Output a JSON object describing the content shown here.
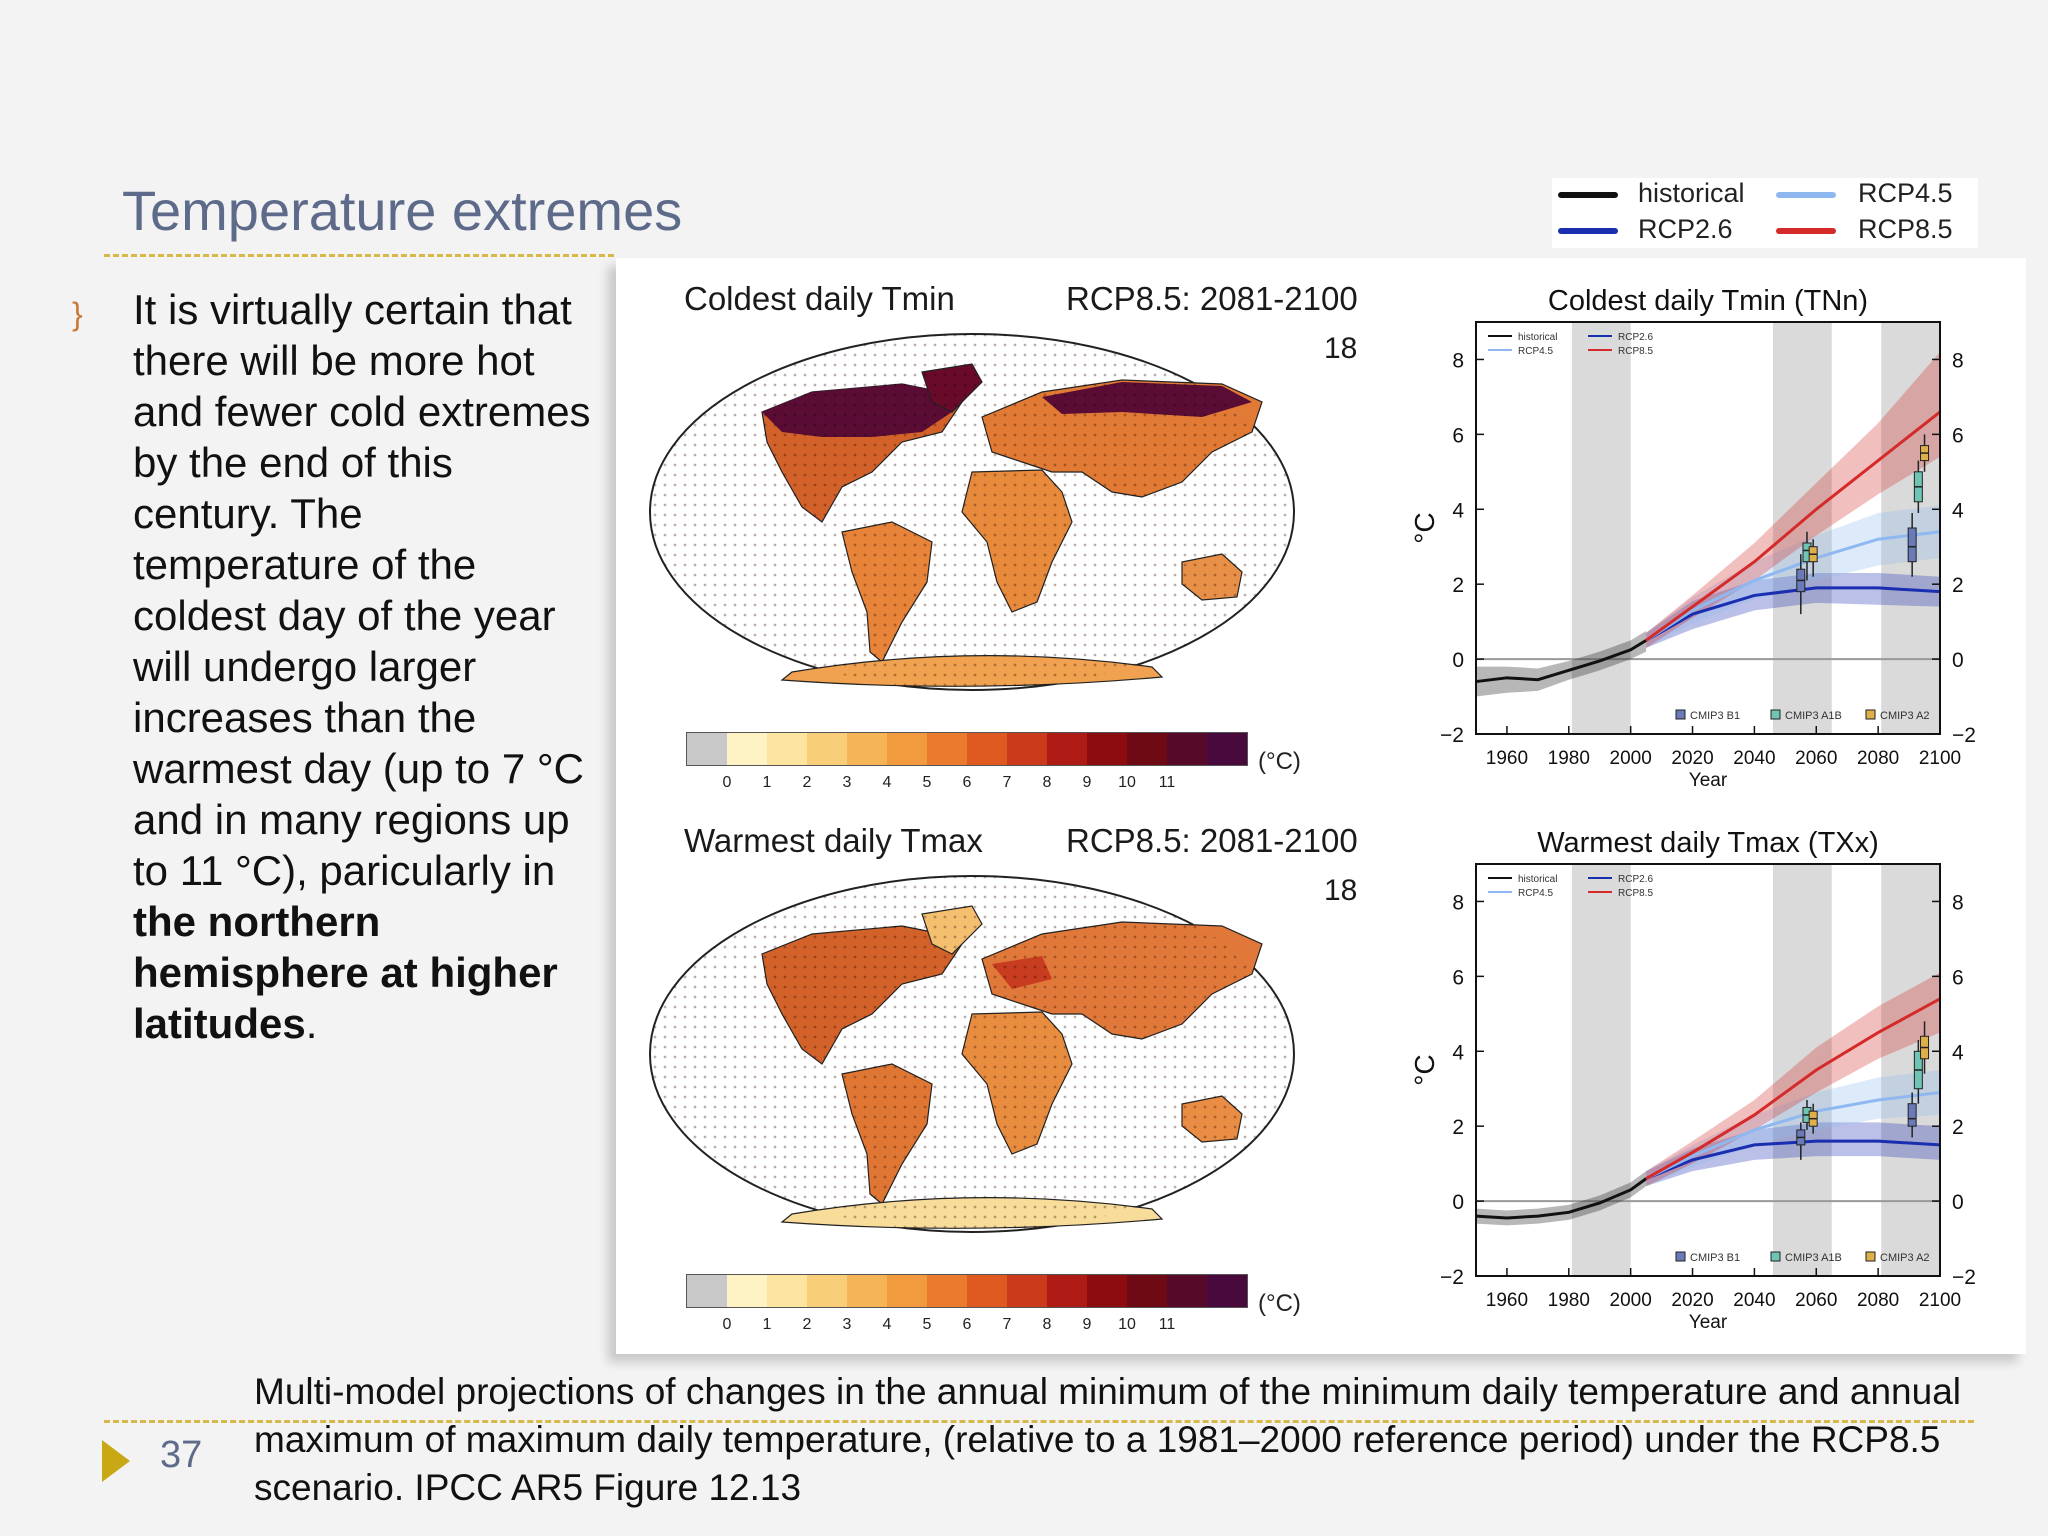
{
  "slide": {
    "title": "Temperature extremes",
    "bullet_icon": "bullet-swirl-icon",
    "body_parts": [
      "It is virtually certain that there will be more hot and fewer cold extremes by the end of this century.  The temperature of the coldest day of the year will undergo larger increases than the warmest day (up to 7 °C and in many regions up to 11 °C), paricularly in ",
      "the northern hemisphere at higher latitudes",
      "."
    ],
    "page_number": "37",
    "caption": "Multi-model projections of changes in the annual minimum of the minimum daily temperature  and annual maximum of maximum daily temperature,  (relative to a 1981–2000 reference period) under the  RCP8.5  scenario. IPCC AR5 Figure 12.13"
  },
  "legend": [
    {
      "label": "historical",
      "color": "#111111"
    },
    {
      "label": "RCP2.6",
      "color": "#1a2eb0"
    },
    {
      "label": "RCP4.5",
      "color": "#8fb8f0"
    },
    {
      "label": "RCP8.5",
      "color": "#d42a2a"
    }
  ],
  "maps": [
    {
      "title": "Coldest daily Tmin",
      "scenario": "RCP8.5: 2081-2100",
      "number": "18"
    },
    {
      "title": "Warmest daily Tmax",
      "scenario": "RCP8.5: 2081-2100",
      "number": "18"
    }
  ],
  "colorbar": {
    "colors": [
      "#c8c8c8",
      "#fdf3c4",
      "#fbe5a0",
      "#f8cf78",
      "#f5b556",
      "#f19a3e",
      "#ea7a2c",
      "#de5a20",
      "#cc3a1c",
      "#ae1a14",
      "#8c0c10",
      "#6e0a14",
      "#560a28",
      "#480a3c"
    ],
    "ticks": [
      "0",
      "1",
      "2",
      "3",
      "4",
      "5",
      "6",
      "7",
      "8",
      "9",
      "10",
      "11"
    ],
    "unit": "(°C)"
  },
  "chart_data": [
    {
      "type": "line",
      "title": "Coldest daily Tmin (TNn)",
      "xlabel": "Year",
      "ylabel": "°C",
      "xlim": [
        1950,
        2100
      ],
      "ylim": [
        -2,
        9
      ],
      "xticks": [
        "1960",
        "1980",
        "2000",
        "2020",
        "2040",
        "2060",
        "2080",
        "2100"
      ],
      "yticks": [
        "−2",
        "0",
        "2",
        "4",
        "6",
        "8"
      ],
      "shaded_periods": [
        [
          1981,
          2000
        ],
        [
          2046,
          2065
        ],
        [
          2081,
          2100
        ]
      ],
      "inner_legend": [
        "historical",
        "RCP2.6",
        "RCP4.5",
        "RCP8.5"
      ],
      "box_legend": [
        "CMIP3 B1",
        "CMIP3 A1B",
        "CMIP3 A2"
      ],
      "series": [
        {
          "name": "historical",
          "color": "#111111",
          "x": [
            1950,
            1960,
            1970,
            1980,
            1990,
            2000,
            2005
          ],
          "y": [
            -0.6,
            -0.5,
            -0.55,
            -0.3,
            -0.05,
            0.25,
            0.5
          ],
          "lo": [
            -1.0,
            -0.9,
            -0.85,
            -0.55,
            -0.3,
            0.0,
            0.2
          ],
          "hi": [
            -0.2,
            -0.2,
            -0.25,
            -0.05,
            0.2,
            0.5,
            0.75
          ]
        },
        {
          "name": "RCP2.6",
          "color": "#1a2eb0",
          "x": [
            2005,
            2020,
            2040,
            2060,
            2080,
            2100
          ],
          "y": [
            0.5,
            1.2,
            1.7,
            1.9,
            1.9,
            1.8
          ],
          "lo": [
            0.3,
            0.8,
            1.3,
            1.5,
            1.45,
            1.4
          ],
          "hi": [
            0.7,
            1.55,
            2.1,
            2.3,
            2.3,
            2.2
          ]
        },
        {
          "name": "RCP4.5",
          "color": "#8fb8f0",
          "x": [
            2005,
            2020,
            2040,
            2060,
            2080,
            2100
          ],
          "y": [
            0.5,
            1.3,
            2.1,
            2.7,
            3.2,
            3.4
          ],
          "lo": [
            0.3,
            0.95,
            1.6,
            2.1,
            2.5,
            2.7
          ],
          "hi": [
            0.7,
            1.65,
            2.6,
            3.3,
            3.9,
            4.1
          ]
        },
        {
          "name": "RCP8.5",
          "color": "#d42a2a",
          "x": [
            2005,
            2020,
            2040,
            2060,
            2080,
            2100
          ],
          "y": [
            0.5,
            1.4,
            2.6,
            4.0,
            5.3,
            6.6
          ],
          "lo": [
            0.3,
            1.1,
            2.1,
            3.3,
            4.4,
            5.4
          ],
          "hi": [
            0.7,
            1.7,
            3.1,
            4.7,
            6.3,
            8.2
          ]
        }
      ],
      "boxes": [
        {
          "scenario": "CMIP3 B1",
          "x": 2055,
          "median": 2.1,
          "q1": 1.8,
          "q3": 2.4,
          "wlo": 1.2,
          "whi": 2.8
        },
        {
          "scenario": "CMIP3 A1B",
          "x": 2057,
          "median": 2.9,
          "q1": 2.6,
          "q3": 3.1,
          "wlo": 2.1,
          "whi": 3.4
        },
        {
          "scenario": "CMIP3 A2",
          "x": 2059,
          "median": 2.8,
          "q1": 2.6,
          "q3": 3.0,
          "wlo": 2.2,
          "whi": 3.2
        },
        {
          "scenario": "CMIP3 B1",
          "x": 2091,
          "median": 3.0,
          "q1": 2.6,
          "q3": 3.5,
          "wlo": 2.2,
          "whi": 3.9
        },
        {
          "scenario": "CMIP3 A1B",
          "x": 2093,
          "median": 4.6,
          "q1": 4.2,
          "q3": 5.0,
          "wlo": 3.9,
          "whi": 5.3
        },
        {
          "scenario": "CMIP3 A2",
          "x": 2095,
          "median": 5.5,
          "q1": 5.3,
          "q3": 5.7,
          "wlo": 5.0,
          "whi": 6.0
        }
      ]
    },
    {
      "type": "line",
      "title": "Warmest daily Tmax (TXx)",
      "xlabel": "Year",
      "ylabel": "°C",
      "xlim": [
        1950,
        2100
      ],
      "ylim": [
        -2,
        9
      ],
      "xticks": [
        "1960",
        "1980",
        "2000",
        "2020",
        "2040",
        "2060",
        "2080",
        "2100"
      ],
      "yticks": [
        "−2",
        "0",
        "2",
        "4",
        "6",
        "8"
      ],
      "shaded_periods": [
        [
          1981,
          2000
        ],
        [
          2046,
          2065
        ],
        [
          2081,
          2100
        ]
      ],
      "inner_legend": [
        "historical",
        "RCP2.6",
        "RCP4.5",
        "RCP8.5"
      ],
      "box_legend": [
        "CMIP3 B1",
        "CMIP3 A1B",
        "CMIP3 A2"
      ],
      "series": [
        {
          "name": "historical",
          "color": "#111111",
          "x": [
            1950,
            1960,
            1970,
            1980,
            1990,
            2000,
            2005
          ],
          "y": [
            -0.4,
            -0.45,
            -0.4,
            -0.3,
            -0.05,
            0.3,
            0.6
          ],
          "lo": [
            -0.6,
            -0.65,
            -0.6,
            -0.5,
            -0.25,
            0.1,
            0.4
          ],
          "hi": [
            -0.2,
            -0.25,
            -0.2,
            -0.1,
            0.15,
            0.5,
            0.8
          ]
        },
        {
          "name": "RCP2.6",
          "color": "#1a2eb0",
          "x": [
            2005,
            2020,
            2040,
            2060,
            2080,
            2100
          ],
          "y": [
            0.6,
            1.1,
            1.5,
            1.6,
            1.6,
            1.5
          ],
          "lo": [
            0.4,
            0.8,
            1.1,
            1.2,
            1.2,
            1.1
          ],
          "hi": [
            0.8,
            1.4,
            1.9,
            2.1,
            2.1,
            2.0
          ]
        },
        {
          "name": "RCP4.5",
          "color": "#8fb8f0",
          "x": [
            2005,
            2020,
            2040,
            2060,
            2080,
            2100
          ],
          "y": [
            0.6,
            1.2,
            1.9,
            2.4,
            2.7,
            2.9
          ],
          "lo": [
            0.4,
            0.9,
            1.5,
            1.9,
            2.2,
            2.3
          ],
          "hi": [
            0.8,
            1.5,
            2.3,
            2.9,
            3.3,
            3.5
          ]
        },
        {
          "name": "RCP8.5",
          "color": "#d42a2a",
          "x": [
            2005,
            2020,
            2040,
            2060,
            2080,
            2100
          ],
          "y": [
            0.6,
            1.3,
            2.3,
            3.5,
            4.5,
            5.4
          ],
          "lo": [
            0.4,
            1.0,
            1.9,
            2.9,
            3.8,
            4.5
          ],
          "hi": [
            0.8,
            1.6,
            2.7,
            4.1,
            5.2,
            6.1
          ]
        }
      ],
      "boxes": [
        {
          "scenario": "CMIP3 B1",
          "x": 2055,
          "median": 1.7,
          "q1": 1.5,
          "q3": 1.9,
          "wlo": 1.1,
          "whi": 2.1
        },
        {
          "scenario": "CMIP3 A1B",
          "x": 2057,
          "median": 2.3,
          "q1": 2.1,
          "q3": 2.5,
          "wlo": 1.9,
          "whi": 2.7
        },
        {
          "scenario": "CMIP3 A2",
          "x": 2059,
          "median": 2.2,
          "q1": 2.0,
          "q3": 2.4,
          "wlo": 1.8,
          "whi": 2.6
        },
        {
          "scenario": "CMIP3 B1",
          "x": 2091,
          "median": 2.2,
          "q1": 2.0,
          "q3": 2.6,
          "wlo": 1.7,
          "whi": 2.9
        },
        {
          "scenario": "CMIP3 A1B",
          "x": 2093,
          "median": 3.5,
          "q1": 3.0,
          "q3": 4.0,
          "wlo": 2.6,
          "whi": 4.3
        },
        {
          "scenario": "CMIP3 A2",
          "x": 2095,
          "median": 4.1,
          "q1": 3.8,
          "q3": 4.4,
          "wlo": 3.4,
          "whi": 4.8
        }
      ]
    }
  ]
}
